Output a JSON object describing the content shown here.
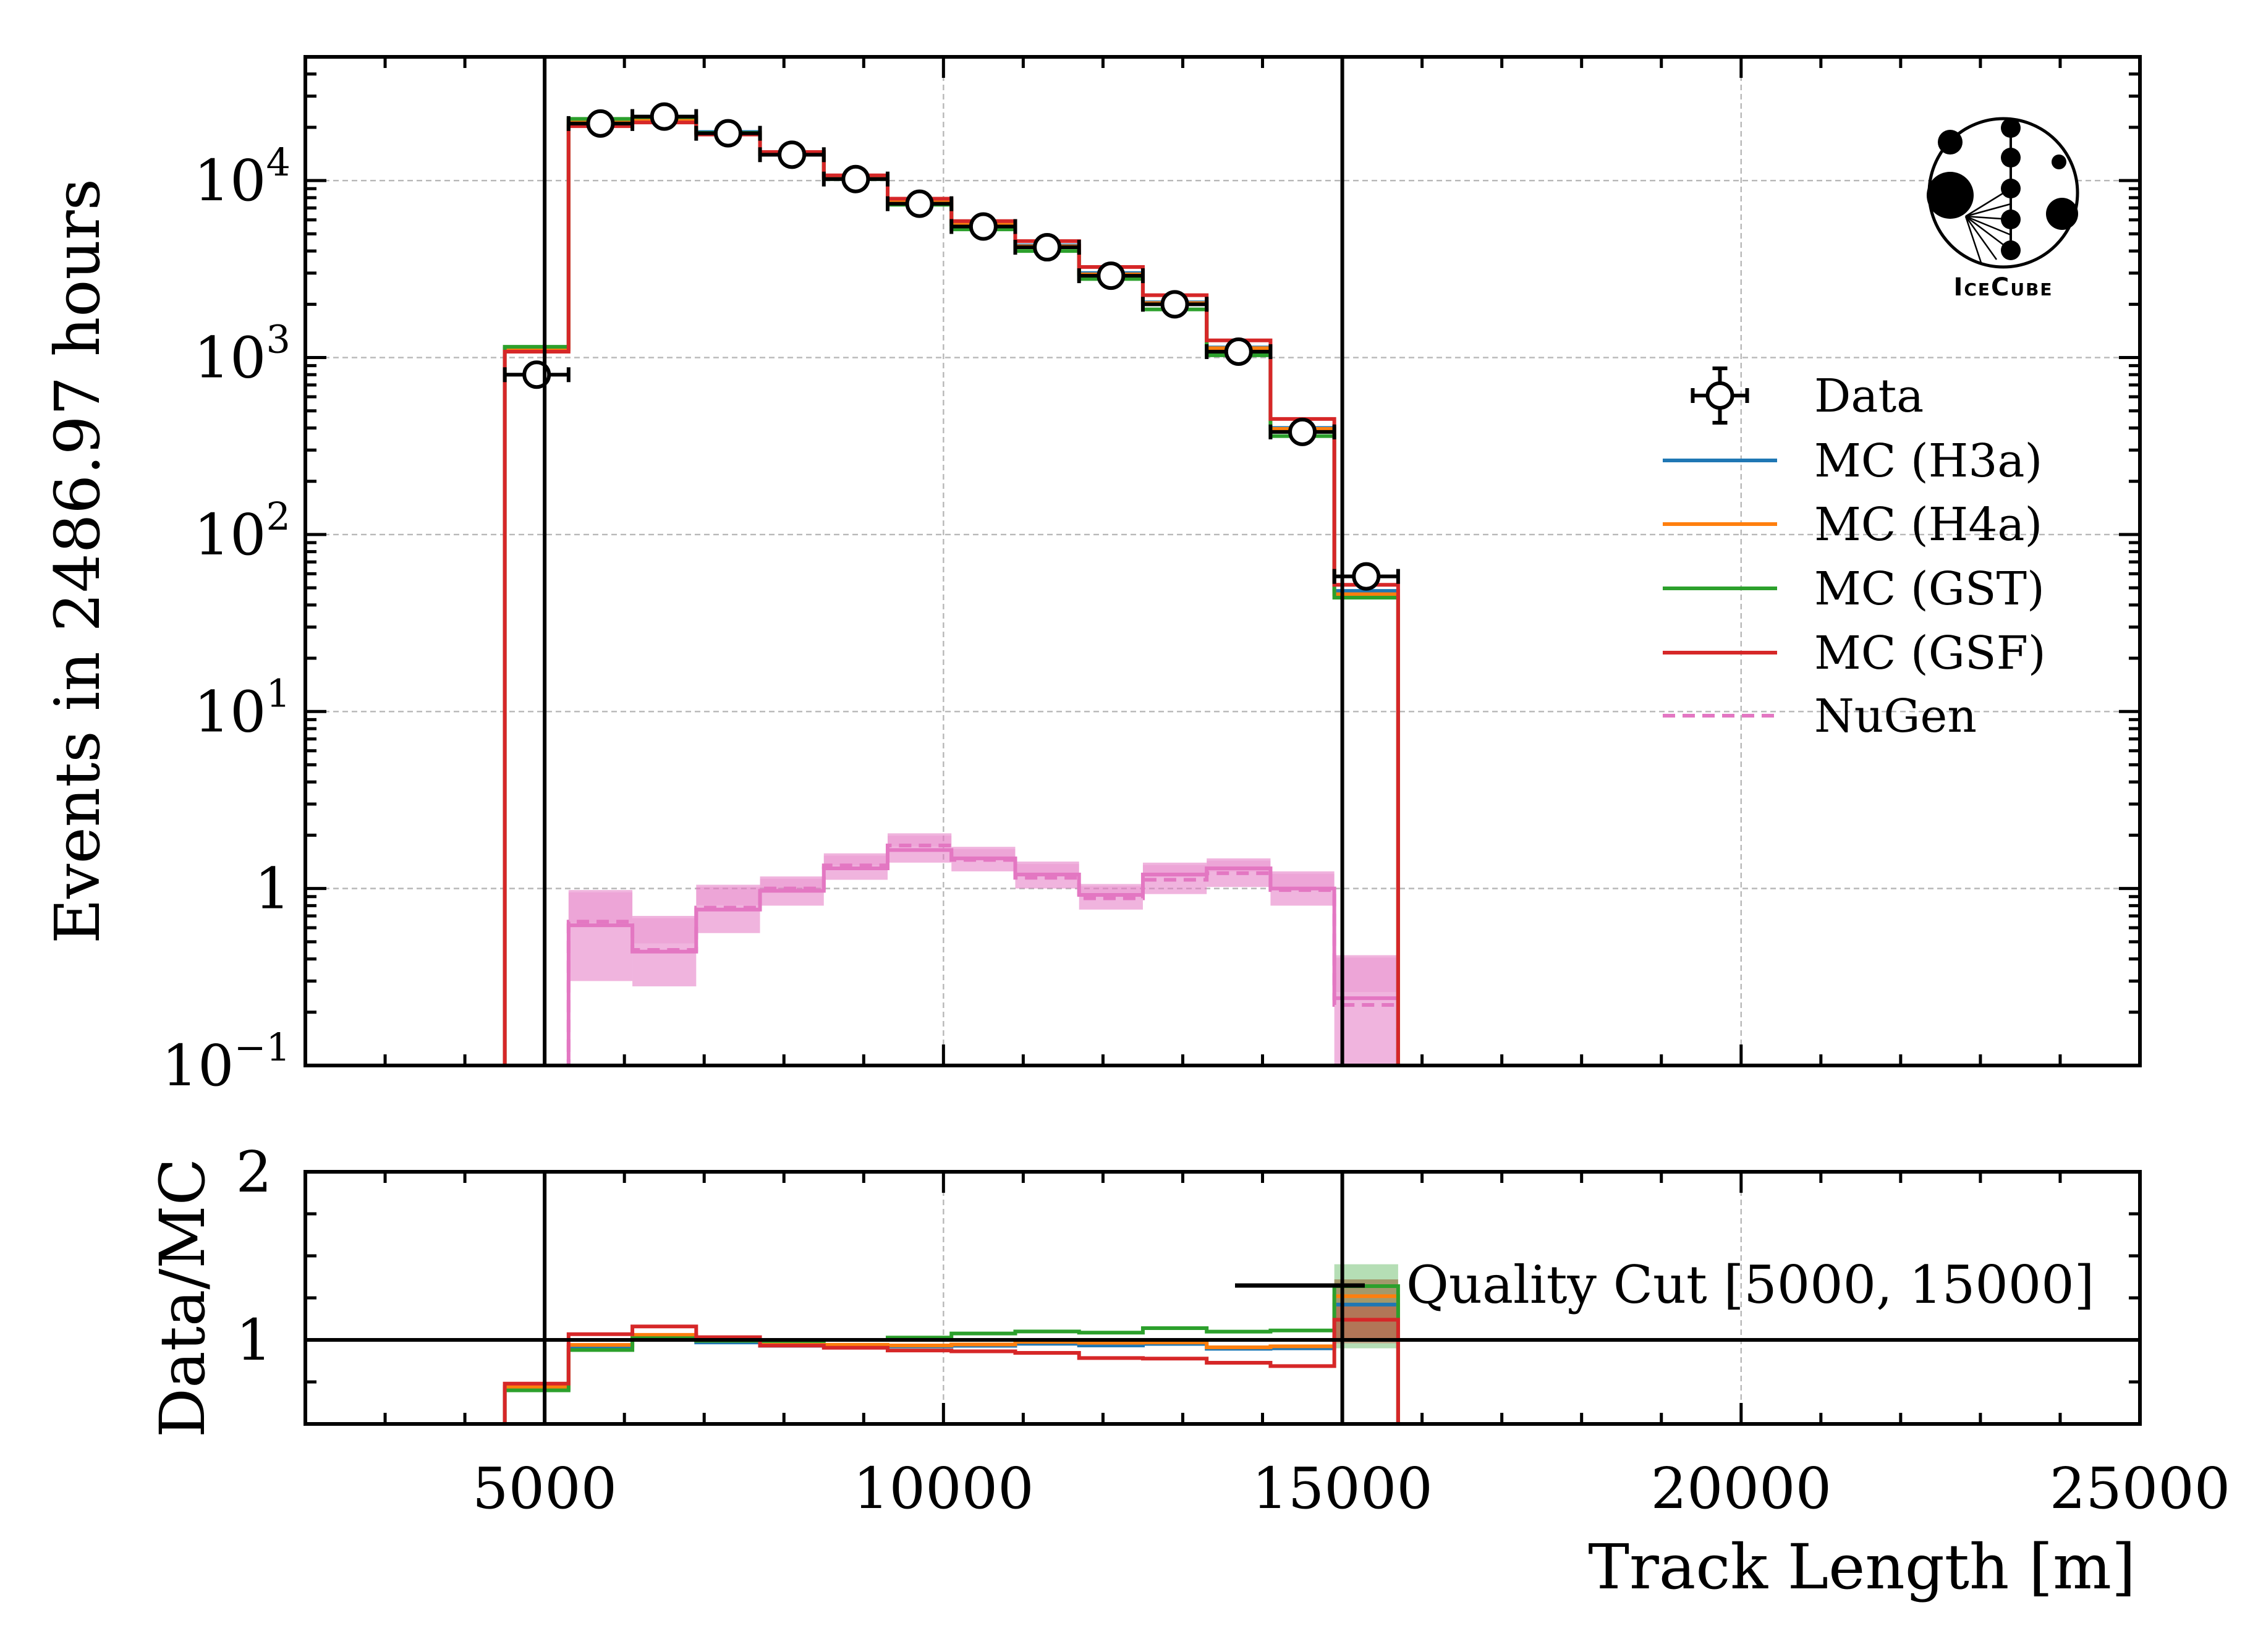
{
  "chart_data": {
    "type": "line",
    "main_panel": {
      "ylabel": "Events in 2486.97 hours",
      "yscale": "log",
      "ylim": [
        0.1,
        50000
      ],
      "y_tick_labels": [
        {
          "value": 0.1,
          "base": "10",
          "exp": "−1"
        },
        {
          "value": 1,
          "base": "1",
          "exp": ""
        },
        {
          "value": 10,
          "base": "10",
          "exp": "1"
        },
        {
          "value": 100,
          "base": "10",
          "exp": "2"
        },
        {
          "value": 1000,
          "base": "10",
          "exp": "3"
        },
        {
          "value": 10000,
          "base": "10",
          "exp": "4"
        }
      ],
      "bin_edges": [
        4500,
        5300,
        6100,
        6900,
        7700,
        8500,
        9300,
        10100,
        10900,
        11700,
        12500,
        13300,
        14100,
        14900,
        15700
      ],
      "data": [
        800,
        21000,
        23000,
        18500,
        14000,
        10200,
        7400,
        5500,
        4200,
        2900,
        2000,
        1080,
        380,
        58
      ],
      "series": [
        {
          "name": "MC (H3a)",
          "color": "#1f77b4",
          "style": "solid",
          "values": [
            1120,
            21800,
            22600,
            18800,
            14500,
            10600,
            7700,
            5700,
            4300,
            3000,
            2050,
            1140,
            400,
            48
          ]
        },
        {
          "name": "MC (H4a)",
          "color": "#ff7f0e",
          "style": "solid",
          "values": [
            1110,
            21600,
            22300,
            18600,
            14400,
            10500,
            7650,
            5650,
            4250,
            2950,
            2030,
            1130,
            395,
            46
          ]
        },
        {
          "name": "MC (GST)",
          "color": "#2ca02c",
          "style": "solid",
          "values": [
            1150,
            22300,
            22800,
            18600,
            14100,
            10200,
            7300,
            5300,
            4000,
            2780,
            1870,
            1030,
            360,
            44
          ]
        },
        {
          "name": "MC (GSF)",
          "color": "#d62728",
          "style": "solid",
          "values": [
            1080,
            20300,
            21300,
            18200,
            14500,
            10700,
            7900,
            5900,
            4550,
            3250,
            2250,
            1250,
            450,
            52
          ]
        },
        {
          "name": "NuGen",
          "color": "#e377c2",
          "style": "dashed",
          "values": [
            null,
            0.65,
            0.45,
            0.78,
            1.0,
            1.35,
            1.75,
            1.45,
            1.15,
            0.88,
            1.12,
            1.22,
            0.98,
            0.22
          ]
        }
      ],
      "nugen_solid": [
        null,
        0.62,
        0.44,
        0.76,
        0.97,
        1.3,
        1.65,
        1.48,
        1.2,
        0.92,
        1.2,
        1.3,
        1.0,
        0.24
      ],
      "nugen_band_low": [
        null,
        0.3,
        0.28,
        0.56,
        0.8,
        1.12,
        1.4,
        1.25,
        1.0,
        0.76,
        0.93,
        1.02,
        0.8,
        0.1
      ],
      "nugen_band_high": [
        null,
        0.98,
        0.7,
        1.05,
        1.17,
        1.58,
        2.05,
        1.72,
        1.42,
        1.06,
        1.4,
        1.48,
        1.25,
        0.42
      ]
    },
    "ratio_panel": {
      "ylabel": "Data/MC",
      "ylim": [
        0.5,
        2
      ],
      "y_ticks": [
        1,
        2
      ],
      "series": [
        {
          "name": "MC (H3a)",
          "values": [
            0.71,
            0.96,
            1.02,
            0.985,
            0.965,
            0.962,
            0.961,
            0.965,
            0.977,
            0.967,
            0.976,
            0.947,
            0.95,
            1.21
          ]
        },
        {
          "name": "MC (H4a)",
          "values": [
            0.72,
            0.97,
            1.03,
            0.995,
            0.972,
            0.971,
            0.967,
            0.973,
            0.988,
            0.983,
            0.985,
            0.956,
            0.962,
            1.26
          ]
        },
        {
          "name": "MC (GST)",
          "values": [
            0.7,
            0.94,
            1.01,
            0.995,
            0.993,
            1.0,
            1.014,
            1.038,
            1.05,
            1.043,
            1.07,
            1.049,
            1.056,
            1.32
          ]
        },
        {
          "name": "MC (GSF)",
          "values": [
            0.74,
            1.034,
            1.08,
            1.016,
            0.966,
            0.953,
            0.937,
            0.932,
            0.923,
            0.892,
            0.889,
            0.864,
            0.844,
            1.12
          ]
        }
      ],
      "last_bin_band": [
        0.95,
        1.45
      ]
    },
    "xlabel": "Track Length [m]",
    "xlim": [
      2000,
      25000
    ],
    "x_ticks": [
      5000,
      10000,
      15000,
      20000,
      25000
    ],
    "cut_lines": [
      5000,
      15000
    ],
    "annotation": "Quality Cut [5000, 15000]",
    "legend": {
      "location": "right",
      "entries": [
        {
          "label": "Data",
          "kind": "marker",
          "color": "#000000"
        },
        {
          "label": "MC (H3a)",
          "kind": "line",
          "color": "#1f77b4"
        },
        {
          "label": "MC (H4a)",
          "kind": "line",
          "color": "#ff7f0e"
        },
        {
          "label": "MC (GST)",
          "kind": "line",
          "color": "#2ca02c"
        },
        {
          "label": "MC (GSF)",
          "kind": "line",
          "color": "#d62728"
        },
        {
          "label": "NuGen",
          "kind": "dashed",
          "color": "#e377c2"
        }
      ]
    },
    "logo_text": "IceCube"
  }
}
